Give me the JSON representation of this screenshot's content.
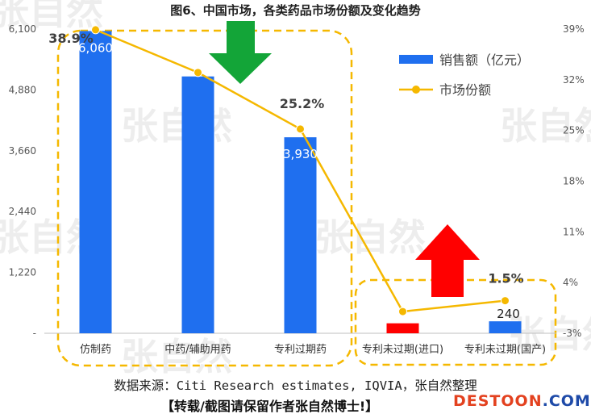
{
  "title": "图6、中国市场，各类药品市场份额及变化趋势",
  "source": "数据来源：Citi Research estimates, IQVIA，张自然整理",
  "notice": "【转载/截图请保留作者张自然博士!】",
  "brand": {
    "part1": "DESTOON",
    "part2": ".COM"
  },
  "watermark_text": "张自然",
  "colors": {
    "bar": "#1f6fef",
    "bar_highlight": "#ff0000",
    "line": "#f5b800",
    "dashed_box": "#f5b800",
    "arrow_down": "#13a538",
    "arrow_up": "#ff0000"
  },
  "chart_data": {
    "type": "bar",
    "categories": [
      "仿制药",
      "中药/辅助用药",
      "专利过期药",
      "专利未过期(进口)",
      "专利未过期(国产)"
    ],
    "series": [
      {
        "name": "销售额（亿元）",
        "type": "bar",
        "axis": "left",
        "values": [
          6060,
          5150,
          3930,
          200,
          240
        ]
      },
      {
        "name": "市场份额",
        "type": "line",
        "axis": "right",
        "values": [
          38.9,
          33.0,
          25.2,
          0.0,
          1.5
        ]
      }
    ],
    "data_labels": {
      "bar": [
        "6,060",
        "",
        "3,930",
        "",
        "240"
      ],
      "line": [
        "38.9%",
        "",
        "25.2%",
        "",
        "1.5%"
      ]
    },
    "y_left": {
      "min": 0,
      "max": 6100,
      "ticks": [
        0,
        1220,
        2440,
        3660,
        4880,
        6100
      ],
      "tick_labels": [
        "-",
        "1,220",
        "2,440",
        "3,660",
        "4,880",
        "6,100"
      ]
    },
    "y_right": {
      "min": -3,
      "max": 39,
      "ticks": [
        -3,
        4,
        11,
        18,
        25,
        32,
        39
      ],
      "tick_labels": [
        "-3%",
        "4%",
        "11%",
        "18%",
        "25%",
        "32%",
        "39%"
      ]
    },
    "legend": {
      "position": "top-right",
      "entries": [
        "销售额（亿元）",
        "市场份额"
      ]
    },
    "highlight_bar_index": 3,
    "grid": false
  }
}
